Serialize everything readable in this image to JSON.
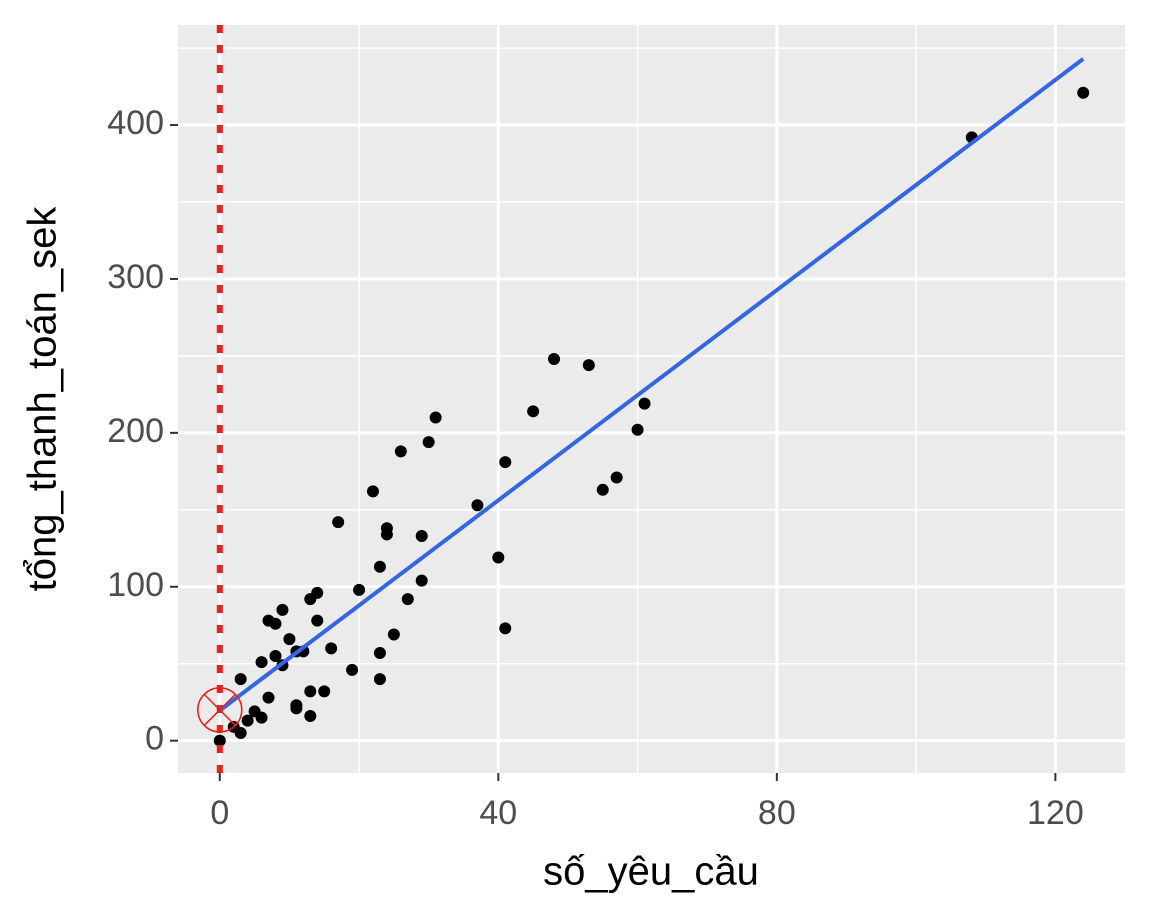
{
  "chart_data": {
    "type": "scatter",
    "x_label": "số_yêu_cầu",
    "y_label": "tổng_thanh_toán_sek",
    "x": [
      124,
      108,
      48,
      53,
      61,
      60,
      57,
      55,
      45,
      41,
      37,
      40,
      41,
      31,
      30,
      26,
      22,
      17,
      24,
      24,
      29,
      23,
      29,
      20,
      27,
      25,
      23,
      23,
      19,
      16,
      14,
      13,
      14,
      10,
      12,
      11,
      9,
      7,
      8,
      8,
      6,
      9,
      13,
      15,
      11,
      11,
      13,
      7,
      5,
      6,
      3,
      4,
      3,
      2,
      0
    ],
    "values": [
      421,
      392,
      248,
      244,
      219,
      202,
      171,
      163,
      214,
      181,
      153,
      119,
      73,
      210,
      194,
      188,
      162,
      142,
      138,
      134,
      133,
      113,
      104,
      98,
      92,
      69,
      57,
      40,
      46,
      60,
      96,
      92,
      78,
      66,
      58,
      58,
      85,
      78,
      76,
      55,
      51,
      49,
      32,
      32,
      23,
      21,
      16,
      28,
      19,
      15,
      40,
      13,
      5,
      9,
      0
    ],
    "color": "#000000",
    "trend": {
      "x": [
        0,
        124
      ],
      "y": [
        19.6,
        443
      ],
      "color": "#3366e6"
    },
    "vline": {
      "x": 0,
      "color": "#e8221c"
    },
    "highlight": {
      "x": 0,
      "y": 20,
      "color": "#e8221c"
    },
    "xlim": [
      -6,
      130
    ],
    "ylim": [
      -21,
      465
    ],
    "xticks": [
      0,
      40,
      80,
      120
    ],
    "yticks": [
      0,
      100,
      200,
      300,
      400
    ],
    "xminor": [
      20,
      60,
      100
    ],
    "yminor": [
      50,
      150,
      250,
      350,
      450
    ],
    "grid": true
  }
}
